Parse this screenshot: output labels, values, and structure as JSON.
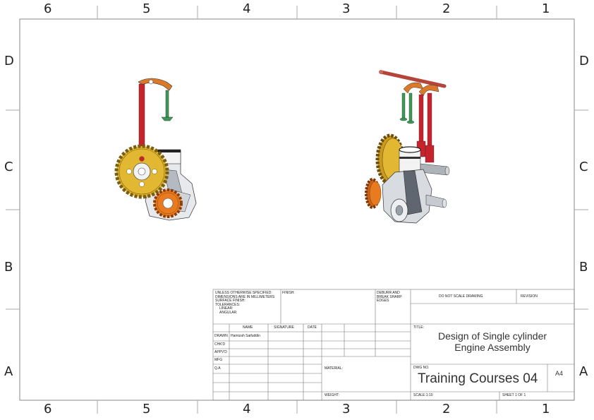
{
  "zones": {
    "top": [
      "6",
      "5",
      "4",
      "3",
      "2",
      "1"
    ],
    "bottom": [
      "6",
      "5",
      "4",
      "3",
      "2",
      "1"
    ],
    "left": [
      "D",
      "C",
      "B",
      "A"
    ],
    "right": [
      "D",
      "C",
      "B",
      "A"
    ]
  },
  "title_block": {
    "tolerance_note": [
      "UNLESS OTHERWISE SPECIFIED:",
      "DIMENSIONS ARE IN MILLIMETERS",
      "SURFACE FINISH:",
      "TOLERANCES:",
      "LINEAR:",
      "ANGULAR:"
    ],
    "finish_label": "FINISH:",
    "deburr_note": [
      "DEBURR AND",
      "BREAK SHARP",
      "EDGES"
    ],
    "do_not_scale": "DO NOT SCALE DRAWING",
    "revision_label": "REVISION",
    "col_name": "NAME",
    "col_signature": "SIGNATURE",
    "col_date": "DATE",
    "rows": [
      {
        "role": "DRAWN",
        "name": "Hamizah Saifuddin"
      },
      {
        "role": "CHK'D",
        "name": ""
      },
      {
        "role": "APPV'D",
        "name": ""
      },
      {
        "role": "MFG",
        "name": ""
      },
      {
        "role": "Q.A",
        "name": ""
      }
    ],
    "title_label": "TITLE:",
    "title_line1": "Design of Single cylinder",
    "title_line2": "Engine Assembly",
    "material_label": "MATERIAL:",
    "weight_label": "WEIGHT:",
    "dwg_no_label": "DWG NO.",
    "dwg_no": "Training Courses 04",
    "sheet_size": "A4",
    "scale": "SCALE:1:10",
    "sheet": "SHEET 1 OF 1"
  },
  "colors": {
    "gear_gold": "#e2b832",
    "gear_orange": "#e87a1f",
    "pushrod_red": "#c8232a",
    "valve_green": "#3b9a55",
    "rocker_orange": "#d97a2a",
    "body_grey": "#9aa0a8"
  }
}
